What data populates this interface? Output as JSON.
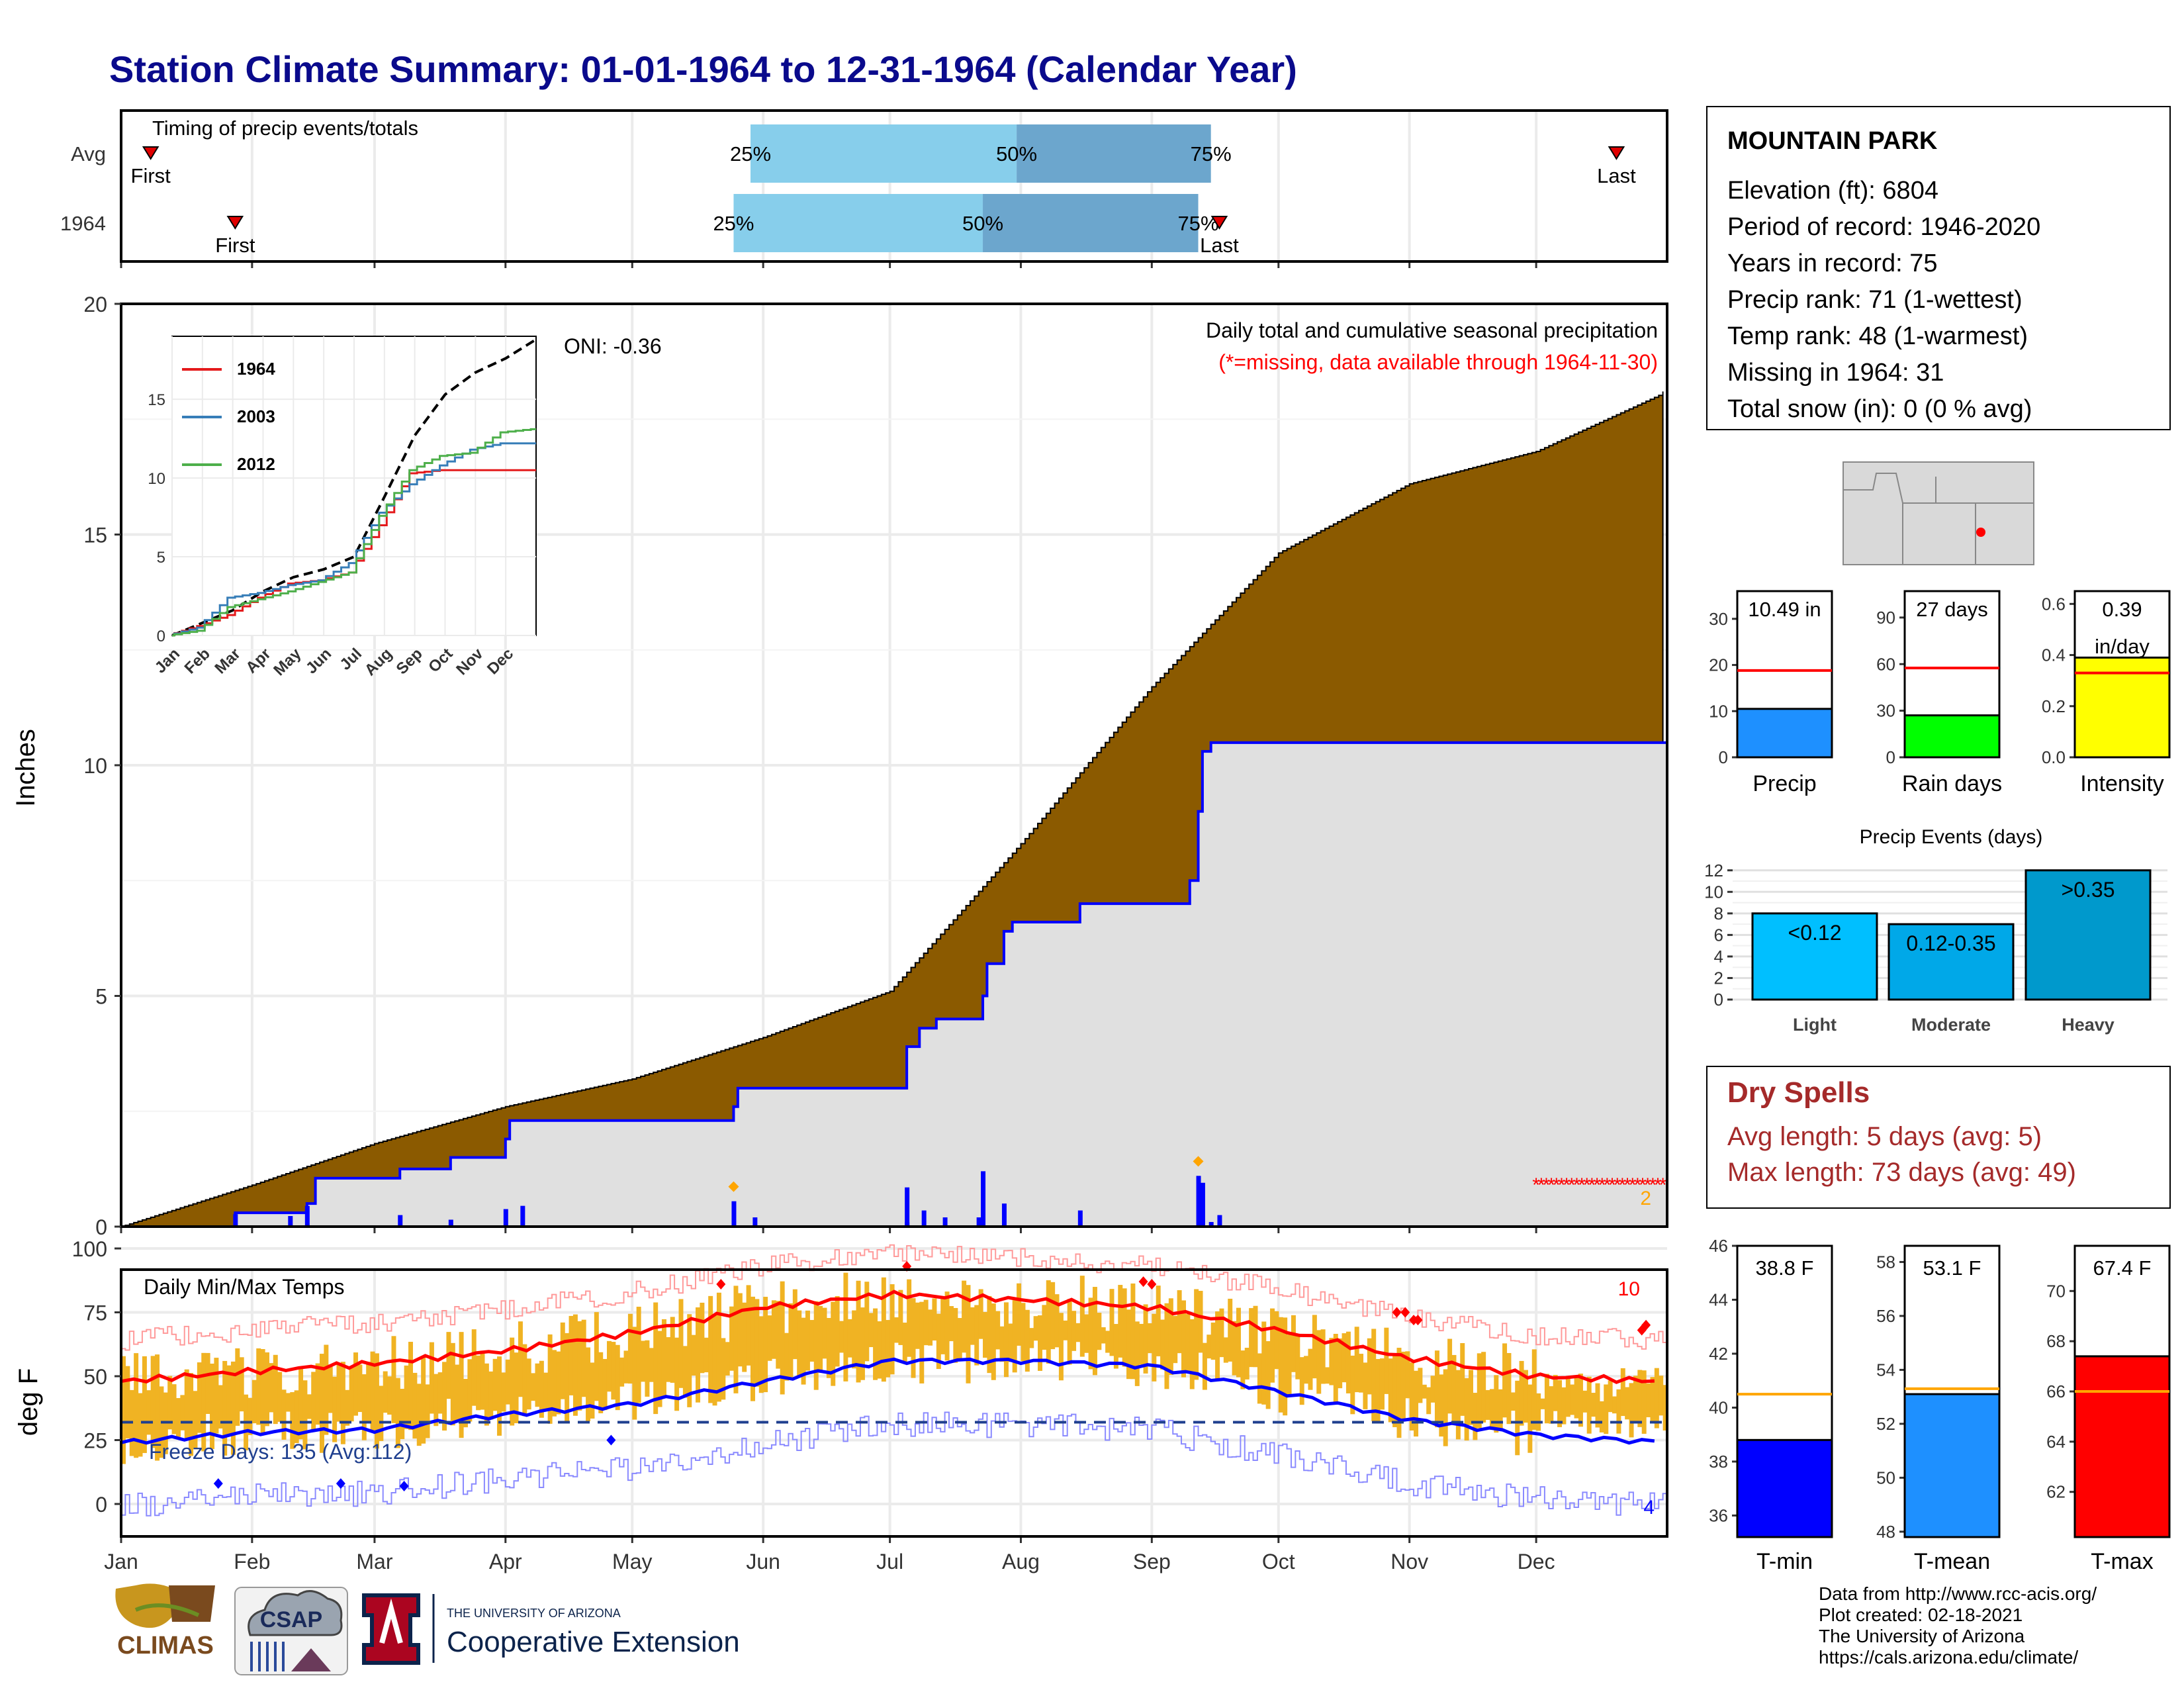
{
  "title": "Station Climate Summary: 01-01-1964 to 12-31-1964 (Calendar Year)",
  "timing": {
    "label": "Timing of precip events/totals",
    "rows": [
      "Avg",
      "1964"
    ],
    "first_label": "First",
    "last_label": "Last",
    "p25": "25%",
    "p50": "50%",
    "p75": "75%",
    "avg": {
      "first": "1964-01-08",
      "q25": "1964-05-29",
      "q50": "1964-07-31",
      "q75": "1964-09-15",
      "last": "1964-12-20"
    },
    "year": {
      "first": "1964-01-28",
      "q25": "1964-05-25",
      "q50": "1964-07-23",
      "q75": "1964-09-12",
      "last": "1964-09-17"
    },
    "colors": {
      "light": "#87ceeb",
      "dark": "#6ca6cd",
      "marker": "#e00000"
    }
  },
  "precip": {
    "ylabel": "Inches",
    "ticks": [
      0,
      5,
      10,
      15,
      20
    ],
    "subtitle": "Daily total and cumulative seasonal precipitation",
    "missing_note": "(*=missing, data available through 1964-11-30)",
    "oni": "ONI: -0.36",
    "missing_count": "2",
    "colors": {
      "cum_avg": "#8b5a00",
      "cum_year_fill": "#e0e0e0",
      "line": "#0000ff",
      "missing": "#ff0000"
    }
  },
  "inset": {
    "ticks": [
      0,
      5,
      10,
      15
    ],
    "months": [
      "Jan",
      "Feb",
      "Mar",
      "Apr",
      "May",
      "Jun",
      "Jul",
      "Aug",
      "Sep",
      "Oct",
      "Nov",
      "Dec"
    ],
    "legend": [
      "1964",
      "2003",
      "2012"
    ],
    "colors": [
      "#e41a1c",
      "#377eb8",
      "#4daf4a"
    ]
  },
  "temps": {
    "ylabel": "deg F",
    "ticks": [
      0,
      25,
      50,
      75,
      100
    ],
    "label": "Daily Min/Max Temps",
    "freeze": "Freeze Days: 135 (Avg:112)",
    "hot_count": "10",
    "cold_count": "4",
    "colors": {
      "bars": "#f0b323",
      "max_avg": "#ff0000",
      "min_avg": "#0000ff",
      "freeze": "#1f3f8f"
    }
  },
  "months": [
    "Jan",
    "Feb",
    "Mar",
    "Apr",
    "May",
    "Jun",
    "Jul",
    "Aug",
    "Sep",
    "Oct",
    "Nov",
    "Dec"
  ],
  "station": {
    "name": "MOUNTAIN PARK",
    "rows": [
      "Elevation (ft): 6804",
      "Period of record: 1946-2020",
      "Years in record: 75",
      "Precip rank: 71 (1-wettest)",
      "Temp rank: 48 (1-warmest)",
      "Missing in 1964: 31",
      "Total snow (in): 0 (0 % avg)"
    ]
  },
  "minibars": [
    {
      "label": "Precip",
      "value_text": "10.49 in",
      "value": 10.49,
      "avg": 18.8,
      "ticks": [
        0,
        10,
        20,
        30
      ],
      "ymax": 36,
      "color": "#1e90ff"
    },
    {
      "label": "Rain days",
      "value_text": "27 days",
      "value": 27,
      "avg": 57.5,
      "ticks": [
        0,
        30,
        60,
        90
      ],
      "ymax": 107,
      "color": "#00ff00"
    },
    {
      "label": "Intensity",
      "value_text": "0.39",
      "value_text2": "in/day",
      "value": 0.39,
      "avg": 0.33,
      "ticks": [
        "0.0",
        "0.2",
        "0.4",
        "0.6"
      ],
      "ymax": 0.65,
      "color": "#ffff00"
    }
  ],
  "events": {
    "title": "Precip Events (days)",
    "ticks": [
      0,
      2,
      4,
      6,
      8,
      10,
      12
    ],
    "categories": [
      "Light",
      "Moderate",
      "Heavy"
    ],
    "bar_labels": [
      "<0.12",
      "0.12-0.35",
      ">0.35"
    ],
    "values": [
      8,
      7,
      12
    ],
    "colors": [
      "#00bfff",
      "#00a8e8",
      "#0099cc"
    ]
  },
  "dry": {
    "title": "Dry Spells",
    "rows": [
      "Avg length: 5 days (avg: 5)",
      "Max length: 73 days (avg: 49)"
    ]
  },
  "tempbars": [
    {
      "label": "T-min",
      "value_text": "38.8 F",
      "value": 38.8,
      "avg": 40.5,
      "ticks": [
        36,
        38,
        40,
        42,
        44,
        46
      ],
      "ymin": 35.2,
      "ymax": 46,
      "color": "#0000ff"
    },
    {
      "label": "T-mean",
      "value_text": "53.1 F",
      "value": 53.1,
      "avg": 53.3,
      "ticks": [
        48,
        50,
        52,
        54,
        56,
        58
      ],
      "ymin": 47.8,
      "ymax": 58.6,
      "color": "#1e90ff"
    },
    {
      "label": "T-max",
      "value_text": "67.4 F",
      "value": 67.4,
      "avg": 66.0,
      "ticks": [
        62,
        64,
        66,
        68,
        70
      ],
      "ymin": 60.2,
      "ymax": 71.8,
      "color": "#ff0000"
    }
  ],
  "logos": {
    "climas": "CLIMAS",
    "csap": "CSAP",
    "ua_small": "THE UNIVERSITY OF ARIZONA",
    "ua_big": "Cooperative Extension"
  },
  "credits": [
    "Data from http://www.rcc-acis.org/",
    "Plot created: 02-18-2021",
    "The University of Arizona",
    "https://cals.arizona.edu/climate/"
  ],
  "chart_data": [
    {
      "type": "area",
      "title": "Daily total and cumulative seasonal precipitation",
      "ylabel": "Inches",
      "ylim": [
        0,
        20
      ],
      "x": [
        "Jan",
        "Feb",
        "Mar",
        "Apr",
        "May",
        "Jun",
        "Jul",
        "Aug",
        "Sep",
        "Oct",
        "Nov",
        "Dec",
        "Dec-31"
      ],
      "series": [
        {
          "values": [
            0.0,
            0.9,
            1.8,
            2.6,
            3.2,
            4.1,
            5.1,
            8.3,
            11.7,
            14.6,
            16.1,
            16.8,
            18.1
          ]
        },
        {
          "values": [
            0.0,
            0.5,
            1.05,
            1.9,
            2.3,
            3.0,
            3.0,
            7.0,
            7.5,
            10.49,
            10.49,
            10.49,
            10.49
          ]
        }
      ],
      "daily_events": [
        {
          "date": "1964-01-28",
          "value": 0.27
        },
        {
          "date": "1964-02-14",
          "value": 0.45
        },
        {
          "date": "1964-03-07",
          "value": 0.25
        },
        {
          "date": "1964-03-19",
          "value": 0.15
        },
        {
          "date": "1964-04-01",
          "value": 0.38
        },
        {
          "date": "1964-05-25",
          "value": 0.55
        },
        {
          "date": "1964-07-05",
          "value": 0.85
        },
        {
          "date": "1964-07-23",
          "value": 1.2
        },
        {
          "date": "1964-07-28",
          "value": 0.5
        },
        {
          "date": "1964-08-15",
          "value": 0.35
        },
        {
          "date": "1964-09-12",
          "value": 1.1
        },
        {
          "date": "1964-09-13",
          "value": 0.95
        }
      ]
    },
    {
      "type": "line",
      "title": "Daily Min/Max Temps",
      "ylabel": "deg F",
      "ylim": [
        -10,
        105
      ],
      "x": [
        "Jan",
        "Feb",
        "Mar",
        "Apr",
        "May",
        "Jun",
        "Jul",
        "Aug",
        "Sep",
        "Oct",
        "Nov",
        "Dec",
        "Dec-31"
      ],
      "series": [
        {
          "values": [
            48,
            52,
            55,
            60,
            67,
            77,
            82,
            80,
            77,
            68,
            57,
            50,
            48
          ]
        },
        {
          "values": [
            24,
            28,
            29,
            35,
            39,
            48,
            56,
            56,
            54,
            44,
            33,
            27,
            24
          ]
        }
      ],
      "freeze_line": 32
    },
    {
      "type": "line",
      "ylim": [
        0,
        19
      ],
      "x": [
        "Jan",
        "Feb",
        "Mar",
        "Apr",
        "May",
        "Jun",
        "Jul",
        "Aug",
        "Sep",
        "Oct",
        "Nov",
        "Dec",
        "Dec-31"
      ],
      "series": [
        {
          "values": [
            0,
            0.8,
            1.6,
            2.8,
            3.7,
            4.2,
            5.0,
            8.8,
            12.7,
            15.3,
            16.7,
            17.6,
            18.8
          ]
        },
        {
          "name": "1964",
          "values": [
            0,
            0.6,
            1.3,
            2.4,
            3.3,
            3.5,
            4.0,
            7.0,
            10.3,
            10.5,
            10.5,
            10.5,
            10.5
          ]
        },
        {
          "name": "2003",
          "values": [
            0,
            0.5,
            2.4,
            2.7,
            3.2,
            3.5,
            4.6,
            7.8,
            9.6,
            10.8,
            11.8,
            12.2,
            12.2
          ]
        },
        {
          "name": "2012",
          "values": [
            0,
            0.3,
            1.8,
            2.3,
            2.8,
            3.4,
            4.0,
            7.6,
            10.5,
            11.4,
            11.6,
            12.9,
            13.1
          ]
        }
      ]
    }
  ]
}
